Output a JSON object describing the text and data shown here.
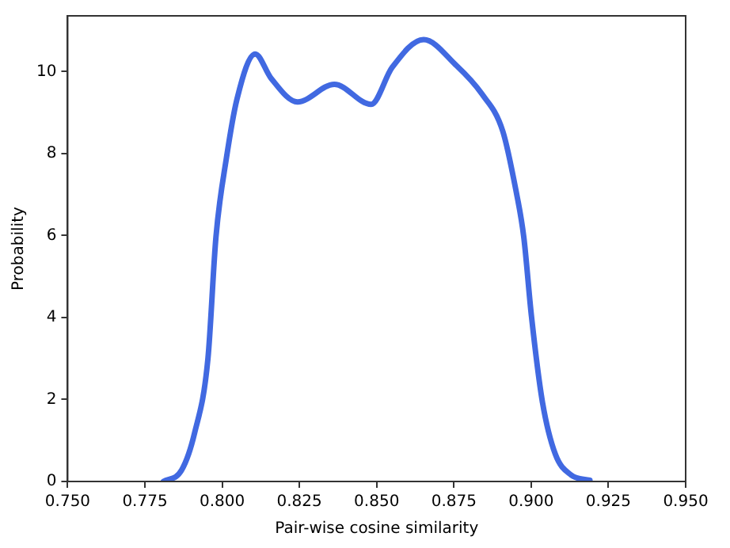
{
  "chart_data": {
    "type": "line",
    "xlabel": "Pair-wise cosine similarity",
    "ylabel": "Probability",
    "series": [
      {
        "color": "#4169e1",
        "x": [
          0.781,
          0.7869,
          0.7911,
          0.7954,
          0.798,
          0.8014,
          0.8048,
          0.8107,
          0.8158,
          0.8244,
          0.8363,
          0.8482,
          0.855,
          0.8652,
          0.8755,
          0.884,
          0.8908,
          0.895,
          0.8976,
          0.9001,
          0.9036,
          0.9078,
          0.9129,
          0.919
        ],
        "values": [
          0,
          0.28,
          1.19,
          3.0,
          5.97,
          7.9,
          9.33,
          10.43,
          9.84,
          9.26,
          9.69,
          9.2,
          10.1,
          10.78,
          10.17,
          9.46,
          8.55,
          7.13,
          5.97,
          4.03,
          1.96,
          0.67,
          0.16,
          0.03
        ]
      }
    ],
    "xlim": [
      0.75,
      0.95
    ],
    "xticks": [
      {
        "value": 0.75,
        "label": "0.750"
      },
      {
        "value": 0.775,
        "label": "0.775"
      },
      {
        "value": 0.8,
        "label": "0.800"
      },
      {
        "value": 0.825,
        "label": "0.825"
      },
      {
        "value": 0.85,
        "label": "0.850"
      },
      {
        "value": 0.875,
        "label": "0.875"
      },
      {
        "value": 0.9,
        "label": "0.900"
      },
      {
        "value": 0.925,
        "label": "0.925"
      },
      {
        "value": 0.95,
        "label": "0.950"
      }
    ],
    "ylim": [
      0,
      11.36
    ],
    "yticks": [
      0,
      2,
      4,
      6,
      8,
      10
    ],
    "grid": false,
    "legend": false,
    "marker": "none",
    "line_style": "solid"
  }
}
